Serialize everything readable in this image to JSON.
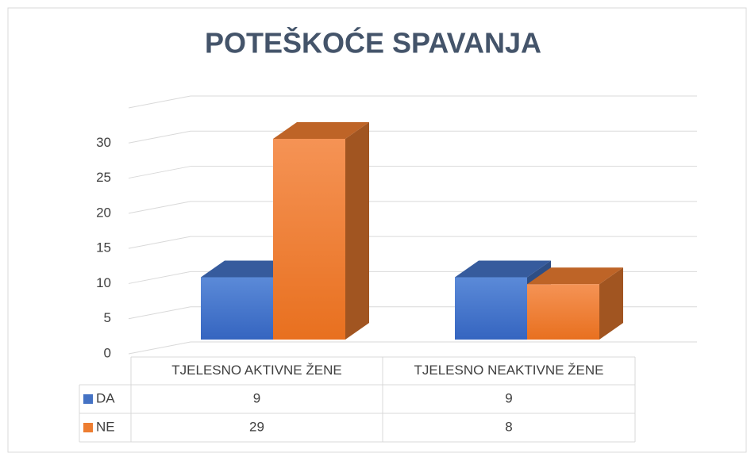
{
  "chart_data": {
    "type": "bar3d",
    "title": "POTEŠKOĆE SPAVANJA",
    "categories": [
      "TJELESNO AKTIVNE ŽENE",
      "TJELESNO NEAKTIVNE ŽENE"
    ],
    "series": [
      {
        "name": "DA",
        "color": "#4472c4",
        "values": [
          9,
          9
        ]
      },
      {
        "name": "NE",
        "color": "#ed7d31",
        "values": [
          29,
          8
        ]
      }
    ],
    "ylim": [
      0,
      35
    ],
    "yticks": [
      0,
      5,
      10,
      15,
      20,
      25,
      30
    ],
    "grid": true,
    "data_table": true
  }
}
